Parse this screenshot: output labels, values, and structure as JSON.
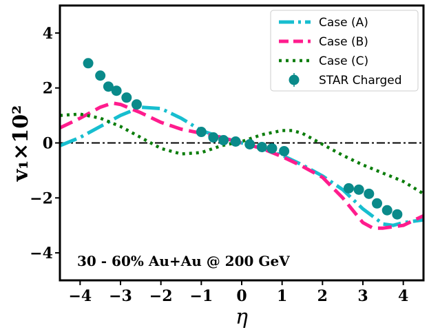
{
  "chart_data": {
    "type": "line",
    "title": "",
    "xlabel": "η",
    "ylabel": "v₁×10²",
    "xlim": [
      -4.5,
      4.5
    ],
    "ylim": [
      -5,
      5
    ],
    "xticks": [
      -4,
      -3,
      -2,
      -1,
      0,
      1,
      2,
      3,
      4
    ],
    "xtick_labels": [
      "−4",
      "−3",
      "−2",
      "−1",
      "0",
      "1",
      "2",
      "3",
      "4"
    ],
    "yticks": [
      -4,
      -2,
      0,
      2,
      4
    ],
    "ytick_labels": [
      "−4",
      "−2",
      "0",
      "2",
      "4"
    ],
    "annotation": "30 - 60% Au+Au @ 200 GeV",
    "reference_line": {
      "y": 0,
      "color": "#000000",
      "style": "dash-dot"
    },
    "legend_position": "top-right",
    "series": [
      {
        "name": "Case (A)",
        "color": "#17becf",
        "style": "dash-dot",
        "x": [
          -4.5,
          -4.0,
          -3.5,
          -3.0,
          -2.5,
          -2.0,
          -1.5,
          -1.0,
          -0.5,
          0.0,
          0.5,
          1.0,
          1.5,
          2.0,
          2.5,
          3.0,
          3.5,
          3.75,
          4.0,
          4.5
        ],
        "y": [
          -0.1,
          0.2,
          0.6,
          1.0,
          1.3,
          1.25,
          0.9,
          0.45,
          0.2,
          0.0,
          -0.2,
          -0.45,
          -0.8,
          -1.2,
          -1.7,
          -2.4,
          -2.95,
          -3.0,
          -2.9,
          -2.8
        ]
      },
      {
        "name": "Case (B)",
        "color": "#ff1c8d",
        "style": "dashed",
        "x": [
          -4.5,
          -4.0,
          -3.5,
          -3.2,
          -3.0,
          -2.5,
          -2.0,
          -1.5,
          -1.0,
          -0.5,
          0.0,
          0.5,
          1.0,
          1.5,
          2.0,
          2.5,
          3.0,
          3.25,
          3.5,
          4.0,
          4.5
        ],
        "y": [
          0.55,
          0.9,
          1.3,
          1.45,
          1.4,
          1.1,
          0.75,
          0.5,
          0.35,
          0.2,
          0.0,
          -0.2,
          -0.5,
          -0.85,
          -1.25,
          -2.0,
          -2.9,
          -3.1,
          -3.1,
          -3.0,
          -2.65
        ]
      },
      {
        "name": "Case (C)",
        "color": "#0b7d0b",
        "style": "dotted",
        "x": [
          -4.5,
          -4.0,
          -3.5,
          -3.0,
          -2.5,
          -2.0,
          -1.5,
          -1.0,
          -0.5,
          0.0,
          0.5,
          1.0,
          1.25,
          1.5,
          2.0,
          2.5,
          3.0,
          3.5,
          4.0,
          4.5
        ],
        "y": [
          1.0,
          1.05,
          0.9,
          0.6,
          0.2,
          -0.2,
          -0.4,
          -0.35,
          -0.1,
          0.05,
          0.3,
          0.45,
          0.45,
          0.35,
          -0.05,
          -0.45,
          -0.8,
          -1.1,
          -1.4,
          -1.85
        ]
      },
      {
        "name": "STAR Charged",
        "color": "#0a8a8a",
        "style": "markers",
        "x": [
          -3.8,
          -3.5,
          -3.3,
          -3.1,
          -2.85,
          -2.6,
          -1.0,
          -0.7,
          -0.45,
          -0.15,
          0.2,
          0.5,
          0.75,
          1.05,
          2.65,
          2.9,
          3.15,
          3.35,
          3.6,
          3.85
        ],
        "y": [
          2.9,
          2.45,
          2.05,
          1.9,
          1.65,
          1.4,
          0.4,
          0.2,
          0.1,
          0.05,
          -0.05,
          -0.15,
          -0.2,
          -0.3,
          -1.65,
          -1.7,
          -1.85,
          -2.2,
          -2.45,
          -2.6
        ]
      }
    ]
  }
}
